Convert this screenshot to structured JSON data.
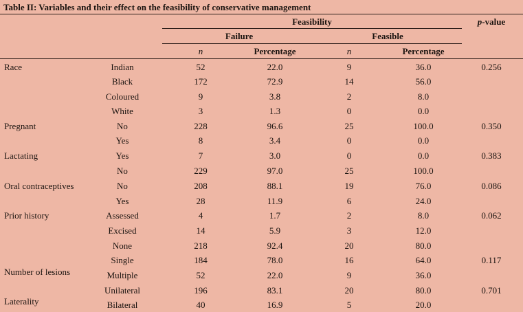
{
  "table": {
    "title": "Table II: Variables and their effect on the feasibility of conservative management",
    "headers": {
      "feasibility": "Feasibility",
      "failure": "Failure",
      "feasible": "Feasible",
      "p_value_italic": "p",
      "p_value_rest": "-value",
      "n": "n",
      "percentage": "Percentage"
    },
    "rows": [
      {
        "variable": "Race",
        "category": "Indian",
        "failure_n": "52",
        "failure_pct": "22.0",
        "feasible_n": "9",
        "feasible_pct": "36.0",
        "p_value": "0.256"
      },
      {
        "variable": "",
        "category": "Black",
        "failure_n": "172",
        "failure_pct": "72.9",
        "feasible_n": "14",
        "feasible_pct": "56.0",
        "p_value": ""
      },
      {
        "variable": "",
        "category": "Coloured",
        "failure_n": "9",
        "failure_pct": "3.8",
        "feasible_n": "2",
        "feasible_pct": "8.0",
        "p_value": ""
      },
      {
        "variable": "",
        "category": "White",
        "failure_n": "3",
        "failure_pct": "1.3",
        "feasible_n": "0",
        "feasible_pct": "0.0",
        "p_value": ""
      },
      {
        "variable": "Pregnant",
        "category": "No",
        "failure_n": "228",
        "failure_pct": "96.6",
        "feasible_n": "25",
        "feasible_pct": "100.0",
        "p_value": "0.350"
      },
      {
        "variable": "",
        "category": "Yes",
        "failure_n": "8",
        "failure_pct": "3.4",
        "feasible_n": "0",
        "feasible_pct": "0.0",
        "p_value": ""
      },
      {
        "variable": "Lactating",
        "category": "Yes",
        "failure_n": "7",
        "failure_pct": "3.0",
        "feasible_n": "0",
        "feasible_pct": "0.0",
        "p_value": "0.383"
      },
      {
        "variable": "",
        "category": "No",
        "failure_n": "229",
        "failure_pct": "97.0",
        "feasible_n": "25",
        "feasible_pct": "100.0",
        "p_value": ""
      },
      {
        "variable": "Oral contraceptives",
        "category": "No",
        "failure_n": "208",
        "failure_pct": "88.1",
        "feasible_n": "19",
        "feasible_pct": "76.0",
        "p_value": "0.086"
      },
      {
        "variable": "",
        "category": "Yes",
        "failure_n": "28",
        "failure_pct": "11.9",
        "feasible_n": "6",
        "feasible_pct": "24.0",
        "p_value": ""
      },
      {
        "variable": "Prior history",
        "category": "Assessed",
        "failure_n": "4",
        "failure_pct": "1.7",
        "feasible_n": "2",
        "feasible_pct": "8.0",
        "p_value": "0.062"
      },
      {
        "variable": "",
        "category": "Excised",
        "failure_n": "14",
        "failure_pct": "5.9",
        "feasible_n": "3",
        "feasible_pct": "12.0",
        "p_value": ""
      },
      {
        "variable": "",
        "category": "None",
        "failure_n": "218",
        "failure_pct": "92.4",
        "feasible_n": "20",
        "feasible_pct": "80.0",
        "p_value": ""
      },
      {
        "variable": "",
        "category": "Single",
        "failure_n": "184",
        "failure_pct": "78.0",
        "feasible_n": "16",
        "feasible_pct": "64.0",
        "p_value": "0.117"
      },
      {
        "variable": "",
        "category": "Multiple",
        "failure_n": "52",
        "failure_pct": "22.0",
        "feasible_n": "9",
        "feasible_pct": "36.0",
        "p_value": ""
      },
      {
        "variable": "",
        "category": "Unilateral",
        "failure_n": "196",
        "failure_pct": "83.1",
        "feasible_n": "20",
        "feasible_pct": "80.0",
        "p_value": "0.701"
      },
      {
        "variable": "",
        "category": "Bilateral",
        "failure_n": "40",
        "failure_pct": "16.9",
        "feasible_n": "5",
        "feasible_pct": "20.0",
        "p_value": ""
      }
    ],
    "floating_labels": {
      "number_of_lesions": "Number of lesions",
      "laterality": "Laterality"
    }
  }
}
